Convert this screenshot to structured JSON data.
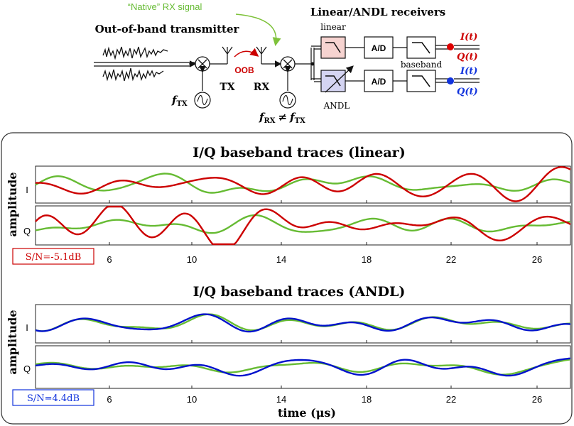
{
  "diagram": {
    "title_native": "“Native” RX signal",
    "title_transmitter": "Out-of-band transmitter",
    "title_receivers": "Linear/ANDL receivers",
    "label_oob": "OOB",
    "label_tx": "TX",
    "label_rx": "RX",
    "label_ftx": "f",
    "label_ftx_sub": "TX",
    "label_frx": "f",
    "label_frx_sub": "RX",
    "label_neq": "≠",
    "label_frx2": "f",
    "label_frx2_sub": "TX",
    "label_linear": "linear",
    "label_andl": "ANDL",
    "label_baseband": "baseband",
    "label_ad_top": "A/D",
    "label_ad_bottom": "A/D",
    "out_top_I": "I(t)",
    "out_top_Q": "Q(t)",
    "out_bottom_I": "I(t)",
    "out_bottom_Q": "Q(t)"
  },
  "panels": {
    "ylabel": "amplitude",
    "xlabel": "time (μs)",
    "xticks": [
      "6",
      "10",
      "14",
      "18",
      "22",
      "26"
    ],
    "linear": {
      "title": "I/Q baseband traces (linear)",
      "row_I": "I",
      "row_Q": "Q",
      "snr": "S/N=-5.1dB",
      "color_trace": "#cc0000",
      "color_ref": "#66bb33"
    },
    "andl": {
      "title": "I/Q baseband traces (ANDL)",
      "row_I": "I",
      "row_Q": "Q",
      "snr": "S/N=4.4dB",
      "color_trace": "#0011cc",
      "color_ref": "#66bb33"
    }
  },
  "chart_data": [
    {
      "type": "line",
      "title": "I/Q baseband traces (linear)",
      "ylabel": "amplitude",
      "xlim": [
        2.3,
        27.6
      ],
      "series": [
        {
          "values": []
        }
      ]
    },
    {
      "type": "line",
      "title": "I/Q baseband traces (ANDL)",
      "ylabel": "amplitude",
      "xlabel": "time (μs)",
      "xlim": [
        2.3,
        27.6
      ],
      "series": [
        {
          "values": []
        }
      ]
    }
  ]
}
